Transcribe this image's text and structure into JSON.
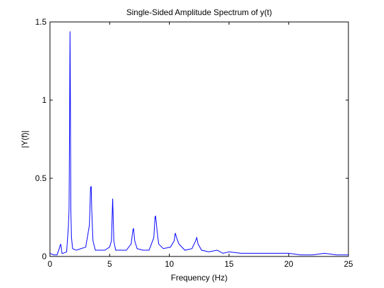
{
  "chart_data": {
    "type": "line",
    "title": "Single-Sided Amplitude Spectrum of y(t)",
    "xlabel": "Frequency (Hz)",
    "ylabel": "|Y(f)|",
    "xlim": [
      0,
      25
    ],
    "ylim": [
      0,
      1.5
    ],
    "x_ticks": [
      "0",
      "5",
      "10",
      "15",
      "20",
      "25"
    ],
    "y_ticks": [
      "0",
      "0.5",
      "1",
      "1.5"
    ],
    "grid": false,
    "legend": "none",
    "line_color": "#0000ff",
    "series": [
      {
        "x": [
          0.0,
          0.3,
          0.6,
          0.9,
          1.0,
          1.1,
          1.4,
          1.55,
          1.6,
          1.65,
          1.68,
          1.7,
          1.72,
          1.75,
          1.8,
          1.9,
          2.2,
          2.6,
          3.0,
          3.3,
          3.4,
          3.45,
          3.5,
          3.6,
          3.8,
          4.2,
          4.6,
          5.0,
          5.15,
          5.25,
          5.35,
          5.5,
          5.9,
          6.4,
          6.8,
          6.95,
          7.0,
          7.1,
          7.3,
          7.8,
          8.3,
          8.7,
          8.8,
          8.85,
          8.95,
          9.1,
          9.5,
          10.1,
          10.4,
          10.5,
          10.6,
          10.8,
          11.3,
          11.9,
          12.2,
          12.3,
          12.4,
          12.7,
          13.3,
          14.0,
          14.5,
          15.0,
          16.0,
          17.0,
          18.0,
          19.0,
          20.0,
          21.0,
          22.0,
          23.0,
          24.0,
          25.0
        ],
        "y": [
          0.02,
          0.01,
          0.01,
          0.08,
          0.02,
          0.02,
          0.03,
          0.2,
          0.3,
          0.95,
          1.44,
          1.2,
          0.85,
          0.3,
          0.12,
          0.05,
          0.04,
          0.05,
          0.06,
          0.2,
          0.44,
          0.45,
          0.3,
          0.1,
          0.04,
          0.04,
          0.04,
          0.06,
          0.1,
          0.37,
          0.1,
          0.04,
          0.04,
          0.04,
          0.08,
          0.17,
          0.18,
          0.1,
          0.05,
          0.04,
          0.04,
          0.12,
          0.25,
          0.26,
          0.18,
          0.08,
          0.05,
          0.06,
          0.1,
          0.15,
          0.12,
          0.08,
          0.04,
          0.05,
          0.1,
          0.12,
          0.08,
          0.04,
          0.03,
          0.04,
          0.02,
          0.03,
          0.02,
          0.02,
          0.02,
          0.02,
          0.02,
          0.01,
          0.01,
          0.02,
          0.01,
          0.01
        ]
      }
    ]
  }
}
